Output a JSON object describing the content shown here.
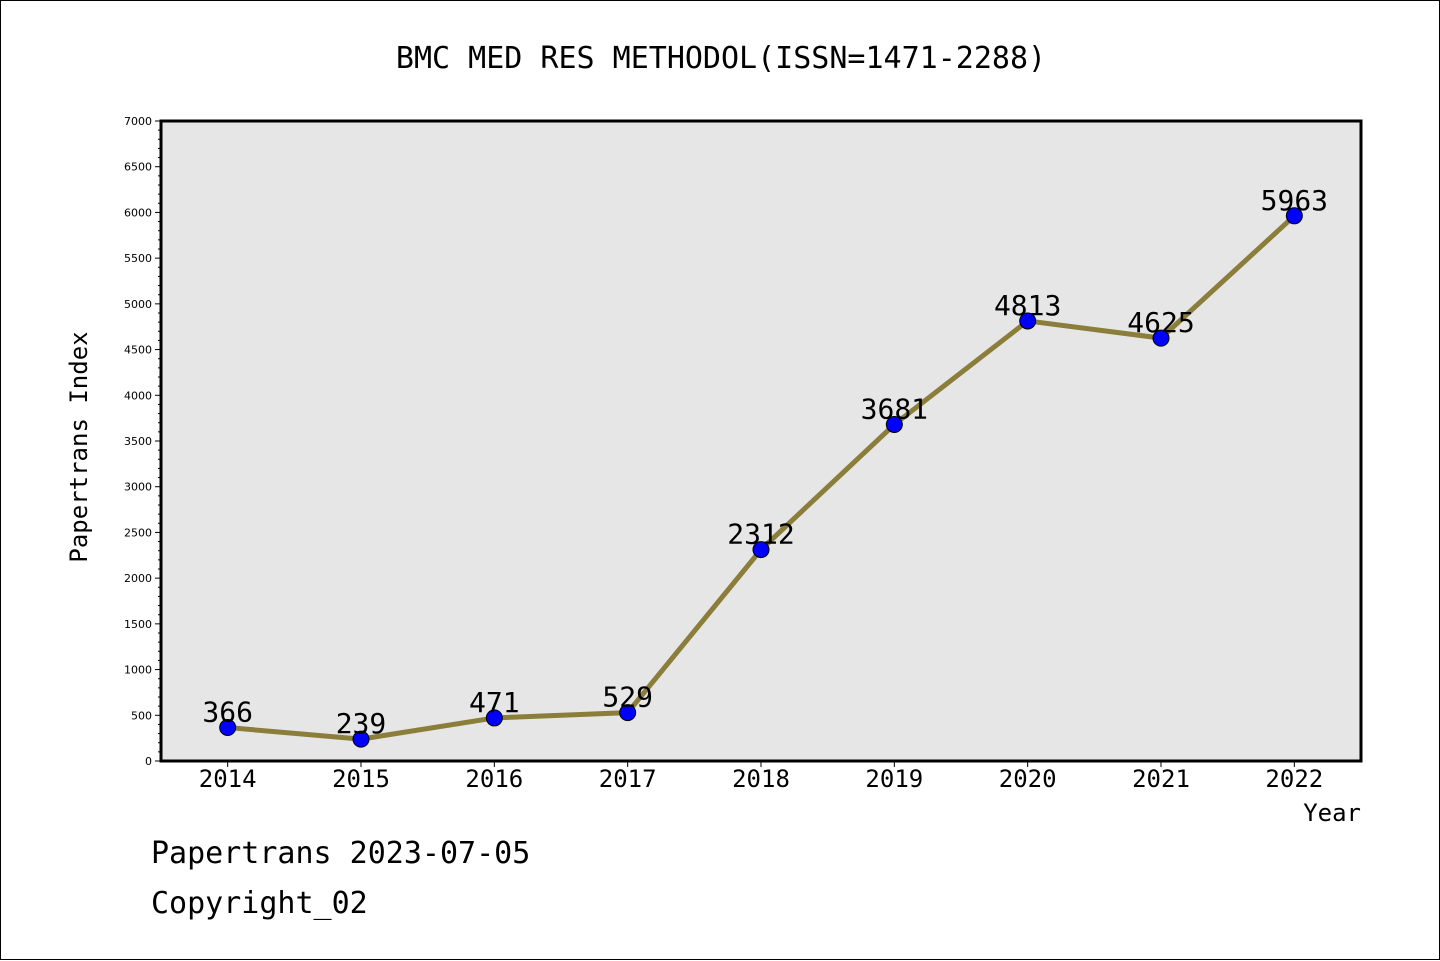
{
  "chart_data": {
    "type": "line",
    "title": "BMC MED RES METHODOL(ISSN=1471-2288)",
    "xlabel": "Year",
    "ylabel": "Papertrans Index",
    "categories": [
      "2014",
      "2015",
      "2016",
      "2017",
      "2018",
      "2019",
      "2020",
      "2021",
      "2022"
    ],
    "values": [
      366,
      239,
      471,
      529,
      2312,
      3681,
      4813,
      4625,
      5963
    ],
    "data_labels": [
      "366",
      "239",
      "471",
      "529",
      "2312",
      "3681",
      "4813",
      "4625",
      "5963"
    ],
    "ylim": [
      0,
      7000
    ],
    "yticks": [
      0,
      500,
      1000,
      1500,
      2000,
      2500,
      3000,
      3500,
      4000,
      4500,
      5000,
      5500,
      6000,
      6500,
      7000
    ],
    "ytick_labels": [
      "0",
      "500",
      "1000",
      "1500",
      "2000",
      "2500",
      "3000",
      "3500",
      "4000",
      "4500",
      "5000",
      "5500",
      "6000",
      "6500",
      "7000"
    ],
    "grid": false,
    "legend": "none",
    "colors": {
      "line": "#8b7d3a",
      "marker": "#0000ff",
      "plot_background": "#e6e6e6"
    }
  },
  "footer": {
    "source": "Papertrans 2023-07-05",
    "copyright": "Copyright_02"
  }
}
